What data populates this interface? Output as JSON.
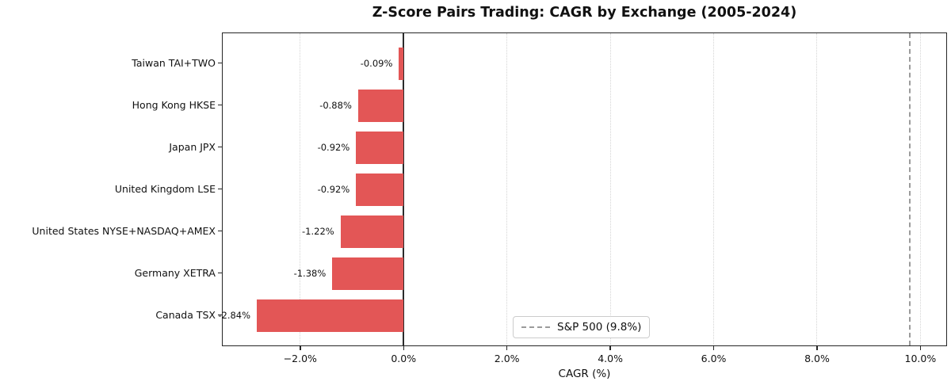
{
  "chart_data": {
    "type": "bar",
    "orientation": "horizontal",
    "title": "Z-Score Pairs Trading: CAGR by Exchange (2005-2024)",
    "xlabel": "CAGR (%)",
    "categories": [
      "Taiwan TAI+TWO",
      "Hong Kong HKSE",
      "Japan JPX",
      "United Kingdom LSE",
      "United States NYSE+NASDAQ+AMEX",
      "Germany XETRA",
      "Canada TSX"
    ],
    "values": [
      -0.09,
      -0.88,
      -0.92,
      -0.92,
      -1.22,
      -1.38,
      -2.84
    ],
    "value_labels": [
      "-0.09%",
      "-0.88%",
      "-0.92%",
      "-0.92%",
      "-1.22%",
      "-1.38%",
      "-2.84%"
    ],
    "xlim": [
      -3.5,
      10.5
    ],
    "x_ticks": [
      -2,
      0,
      2,
      4,
      6,
      8,
      10
    ],
    "x_tick_labels": [
      "−2.0%",
      "0.0%",
      "2.0%",
      "4.0%",
      "6.0%",
      "8.0%",
      "10.0%"
    ],
    "grid": true,
    "legend_position": "lower right of center",
    "bar_color": "#e35656",
    "grid_color": "#d4d4d4",
    "axis_color": "#262626",
    "reference_line": {
      "value": 9.8,
      "label": "S&P 500 (9.8%)",
      "color": "#9b9b9b",
      "style": "dashed"
    }
  }
}
